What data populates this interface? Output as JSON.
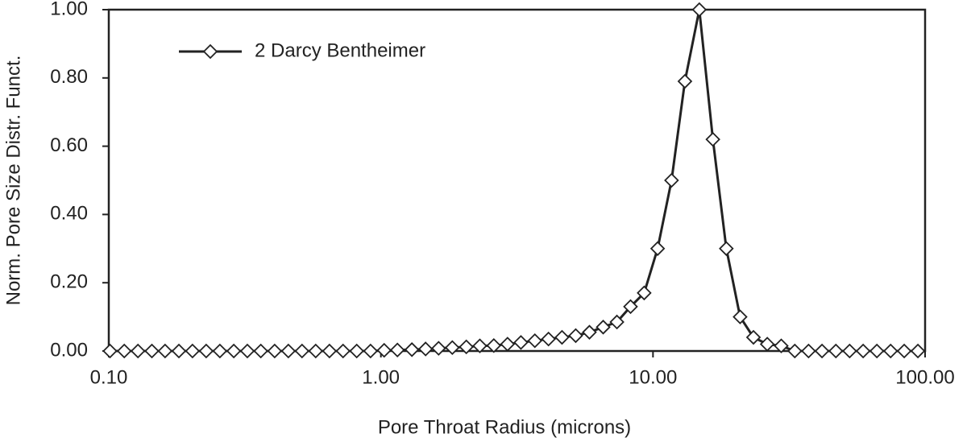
{
  "chart_data": {
    "type": "line",
    "xlabel": "Pore Throat Radius (microns)",
    "ylabel": "Norm. Pore Size Distr. Funct.",
    "xscale": "log",
    "x": [
      0.101,
      0.114,
      0.128,
      0.144,
      0.161,
      0.181,
      0.203,
      0.228,
      0.256,
      0.288,
      0.323,
      0.362,
      0.407,
      0.457,
      0.513,
      0.576,
      0.647,
      0.726,
      0.815,
      0.916,
      1.028,
      1.15,
      1.3,
      1.46,
      1.63,
      1.83,
      2.06,
      2.31,
      2.6,
      2.92,
      3.27,
      3.68,
      4.13,
      4.63,
      5.2,
      5.84,
      6.56,
      7.37,
      8.27,
      9.28,
      10.4,
      11.7,
      13.1,
      14.8,
      16.6,
      18.6,
      20.9,
      23.4,
      26.3,
      29.6,
      33.2,
      37.3,
      41.8,
      47.0,
      52.8,
      59.2,
      66.5,
      74.7,
      83.8,
      94.1
    ],
    "series": [
      {
        "name": "2 Darcy Bentheimer",
        "color": "#222222",
        "values": [
          0,
          0,
          0,
          0,
          0,
          0,
          0,
          0,
          0,
          0,
          0,
          0,
          0,
          0,
          0,
          0,
          0,
          0,
          0,
          0,
          0.002,
          0.003,
          0.004,
          0.006,
          0.008,
          0.01,
          0.012,
          0.015,
          0.016,
          0.02,
          0.025,
          0.03,
          0.035,
          0.04,
          0.045,
          0.055,
          0.07,
          0.085,
          0.13,
          0.17,
          0.3,
          0.5,
          0.79,
          1.0,
          0.62,
          0.3,
          0.1,
          0.04,
          0.02,
          0.015,
          0,
          0,
          0,
          0,
          0,
          0,
          0,
          0,
          0,
          0
        ]
      }
    ],
    "xlim": [
      0.1,
      100
    ],
    "ylim": [
      0,
      1
    ],
    "xticks": [
      {
        "value": 0.1,
        "label": "0.10"
      },
      {
        "value": 1,
        "label": "1.00"
      },
      {
        "value": 10,
        "label": "10.00"
      },
      {
        "value": 100,
        "label": "100.00"
      }
    ],
    "yticks": [
      {
        "value": 0,
        "label": "0.00"
      },
      {
        "value": 0.2,
        "label": "0.20"
      },
      {
        "value": 0.4,
        "label": "0.40"
      },
      {
        "value": 0.6,
        "label": "0.60"
      },
      {
        "value": 0.8,
        "label": "0.80"
      },
      {
        "value": 1,
        "label": "1.00"
      }
    ],
    "legend": "top-left"
  }
}
